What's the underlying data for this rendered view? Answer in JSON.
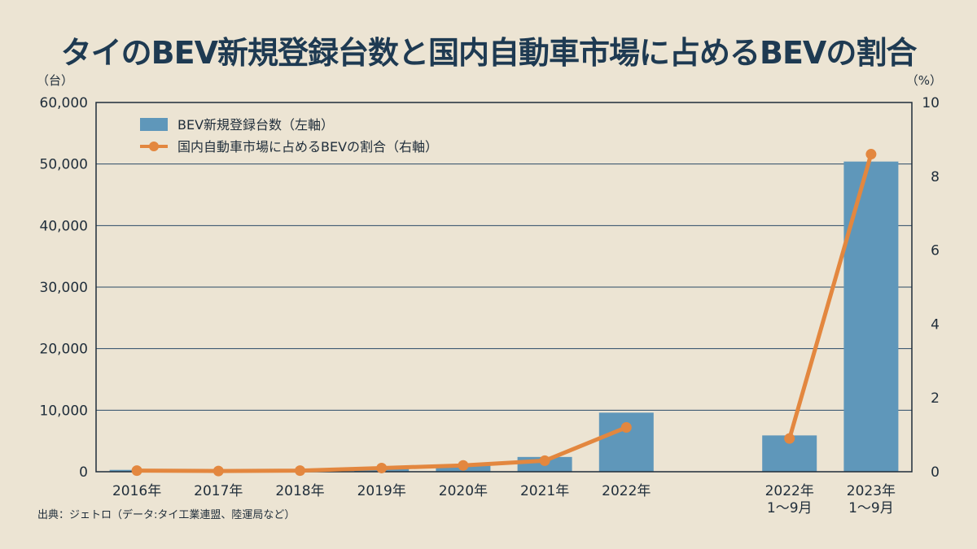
{
  "title": "タイのBEV新規登録台数と国内自動車市場に占めるBEVの割合",
  "source": "出典：ジェトロ（データ:タイ工業連盟、陸運局など）",
  "colors": {
    "bar": "#5f97ba",
    "line": "#e3873f",
    "background": "#ece4d3",
    "title": "#1e3a52"
  },
  "chart_data": {
    "type": "bar",
    "categories": [
      "2016年",
      "2017年",
      "2018年",
      "2019年",
      "2020年",
      "2021年",
      "2022年",
      "",
      "2022年\n1〜9月",
      "2023年\n1〜9月"
    ],
    "y_left_unit": "（台）",
    "y_right_unit": "（%）",
    "ylim_left": [
      0,
      60000
    ],
    "ylim_right": [
      0,
      10
    ],
    "yticks_left": [
      "0",
      "10,000",
      "20,000",
      "30,000",
      "40,000",
      "50,000",
      "60,000"
    ],
    "yticks_right": [
      "0",
      "2",
      "4",
      "6",
      "8",
      "10"
    ],
    "grid": true,
    "legend_position": "top-left",
    "series": [
      {
        "name": "BEV新規登録台数（左軸）",
        "type": "bar",
        "axis": "left",
        "values": [
          300,
          100,
          200,
          700,
          1100,
          2400,
          9600,
          null,
          5900,
          50400
        ]
      },
      {
        "name": "国内自動車市場に占めるBEVの割合（右軸）",
        "type": "line",
        "axis": "right",
        "values": [
          0.03,
          0.02,
          0.03,
          0.1,
          0.17,
          0.3,
          1.2,
          null,
          0.9,
          8.6
        ]
      }
    ]
  }
}
